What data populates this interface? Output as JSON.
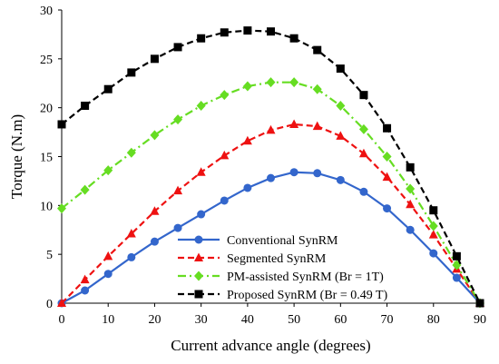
{
  "chart_data": {
    "type": "line",
    "xlabel": "Current advance angle (degrees)",
    "ylabel": "Torque (N.m)",
    "xlim": [
      0,
      90
    ],
    "ylim": [
      0,
      30
    ],
    "x_ticks": [
      0,
      10,
      20,
      30,
      40,
      50,
      60,
      70,
      80,
      90
    ],
    "y_ticks": [
      0,
      5,
      10,
      15,
      20,
      25,
      30
    ],
    "grid": false,
    "legend_position": "bottom-right",
    "x": [
      0,
      5,
      10,
      15,
      20,
      25,
      30,
      35,
      40,
      45,
      50,
      55,
      60,
      65,
      70,
      75,
      80,
      85,
      90
    ],
    "series": [
      {
        "name": "Conventional SynRM",
        "color": "#3366cc",
        "line": "solid",
        "marker": "circle",
        "values": [
          0,
          1.3,
          3.0,
          4.7,
          6.3,
          7.7,
          9.1,
          10.5,
          11.8,
          12.8,
          13.4,
          13.3,
          12.6,
          11.4,
          9.7,
          7.5,
          5.1,
          2.6,
          0
        ]
      },
      {
        "name": "Segmented SynRM",
        "color": "#ee1111",
        "line": "dashed",
        "marker": "triangle",
        "values": [
          0,
          2.4,
          4.8,
          7.1,
          9.4,
          11.5,
          13.4,
          15.1,
          16.6,
          17.7,
          18.3,
          18.1,
          17.1,
          15.3,
          12.9,
          10.1,
          7.0,
          3.5,
          0
        ]
      },
      {
        "name": "PM-assisted SynRM (Br = 1T)",
        "color": "#66dd22",
        "line": "dashdot",
        "marker": "diamond",
        "values": [
          9.7,
          11.6,
          13.6,
          15.4,
          17.2,
          18.8,
          20.2,
          21.3,
          22.2,
          22.6,
          22.6,
          21.9,
          20.2,
          17.8,
          15.0,
          11.7,
          7.9,
          3.9,
          0
        ]
      },
      {
        "name": "Proposed SynRM (Br = 0.49 T)",
        "color": "#000000",
        "line": "dashed",
        "marker": "square",
        "values": [
          18.3,
          20.2,
          21.9,
          23.6,
          25.0,
          26.2,
          27.1,
          27.7,
          27.9,
          27.8,
          27.1,
          25.9,
          24.0,
          21.3,
          17.9,
          13.9,
          9.5,
          4.8,
          0
        ]
      }
    ]
  }
}
